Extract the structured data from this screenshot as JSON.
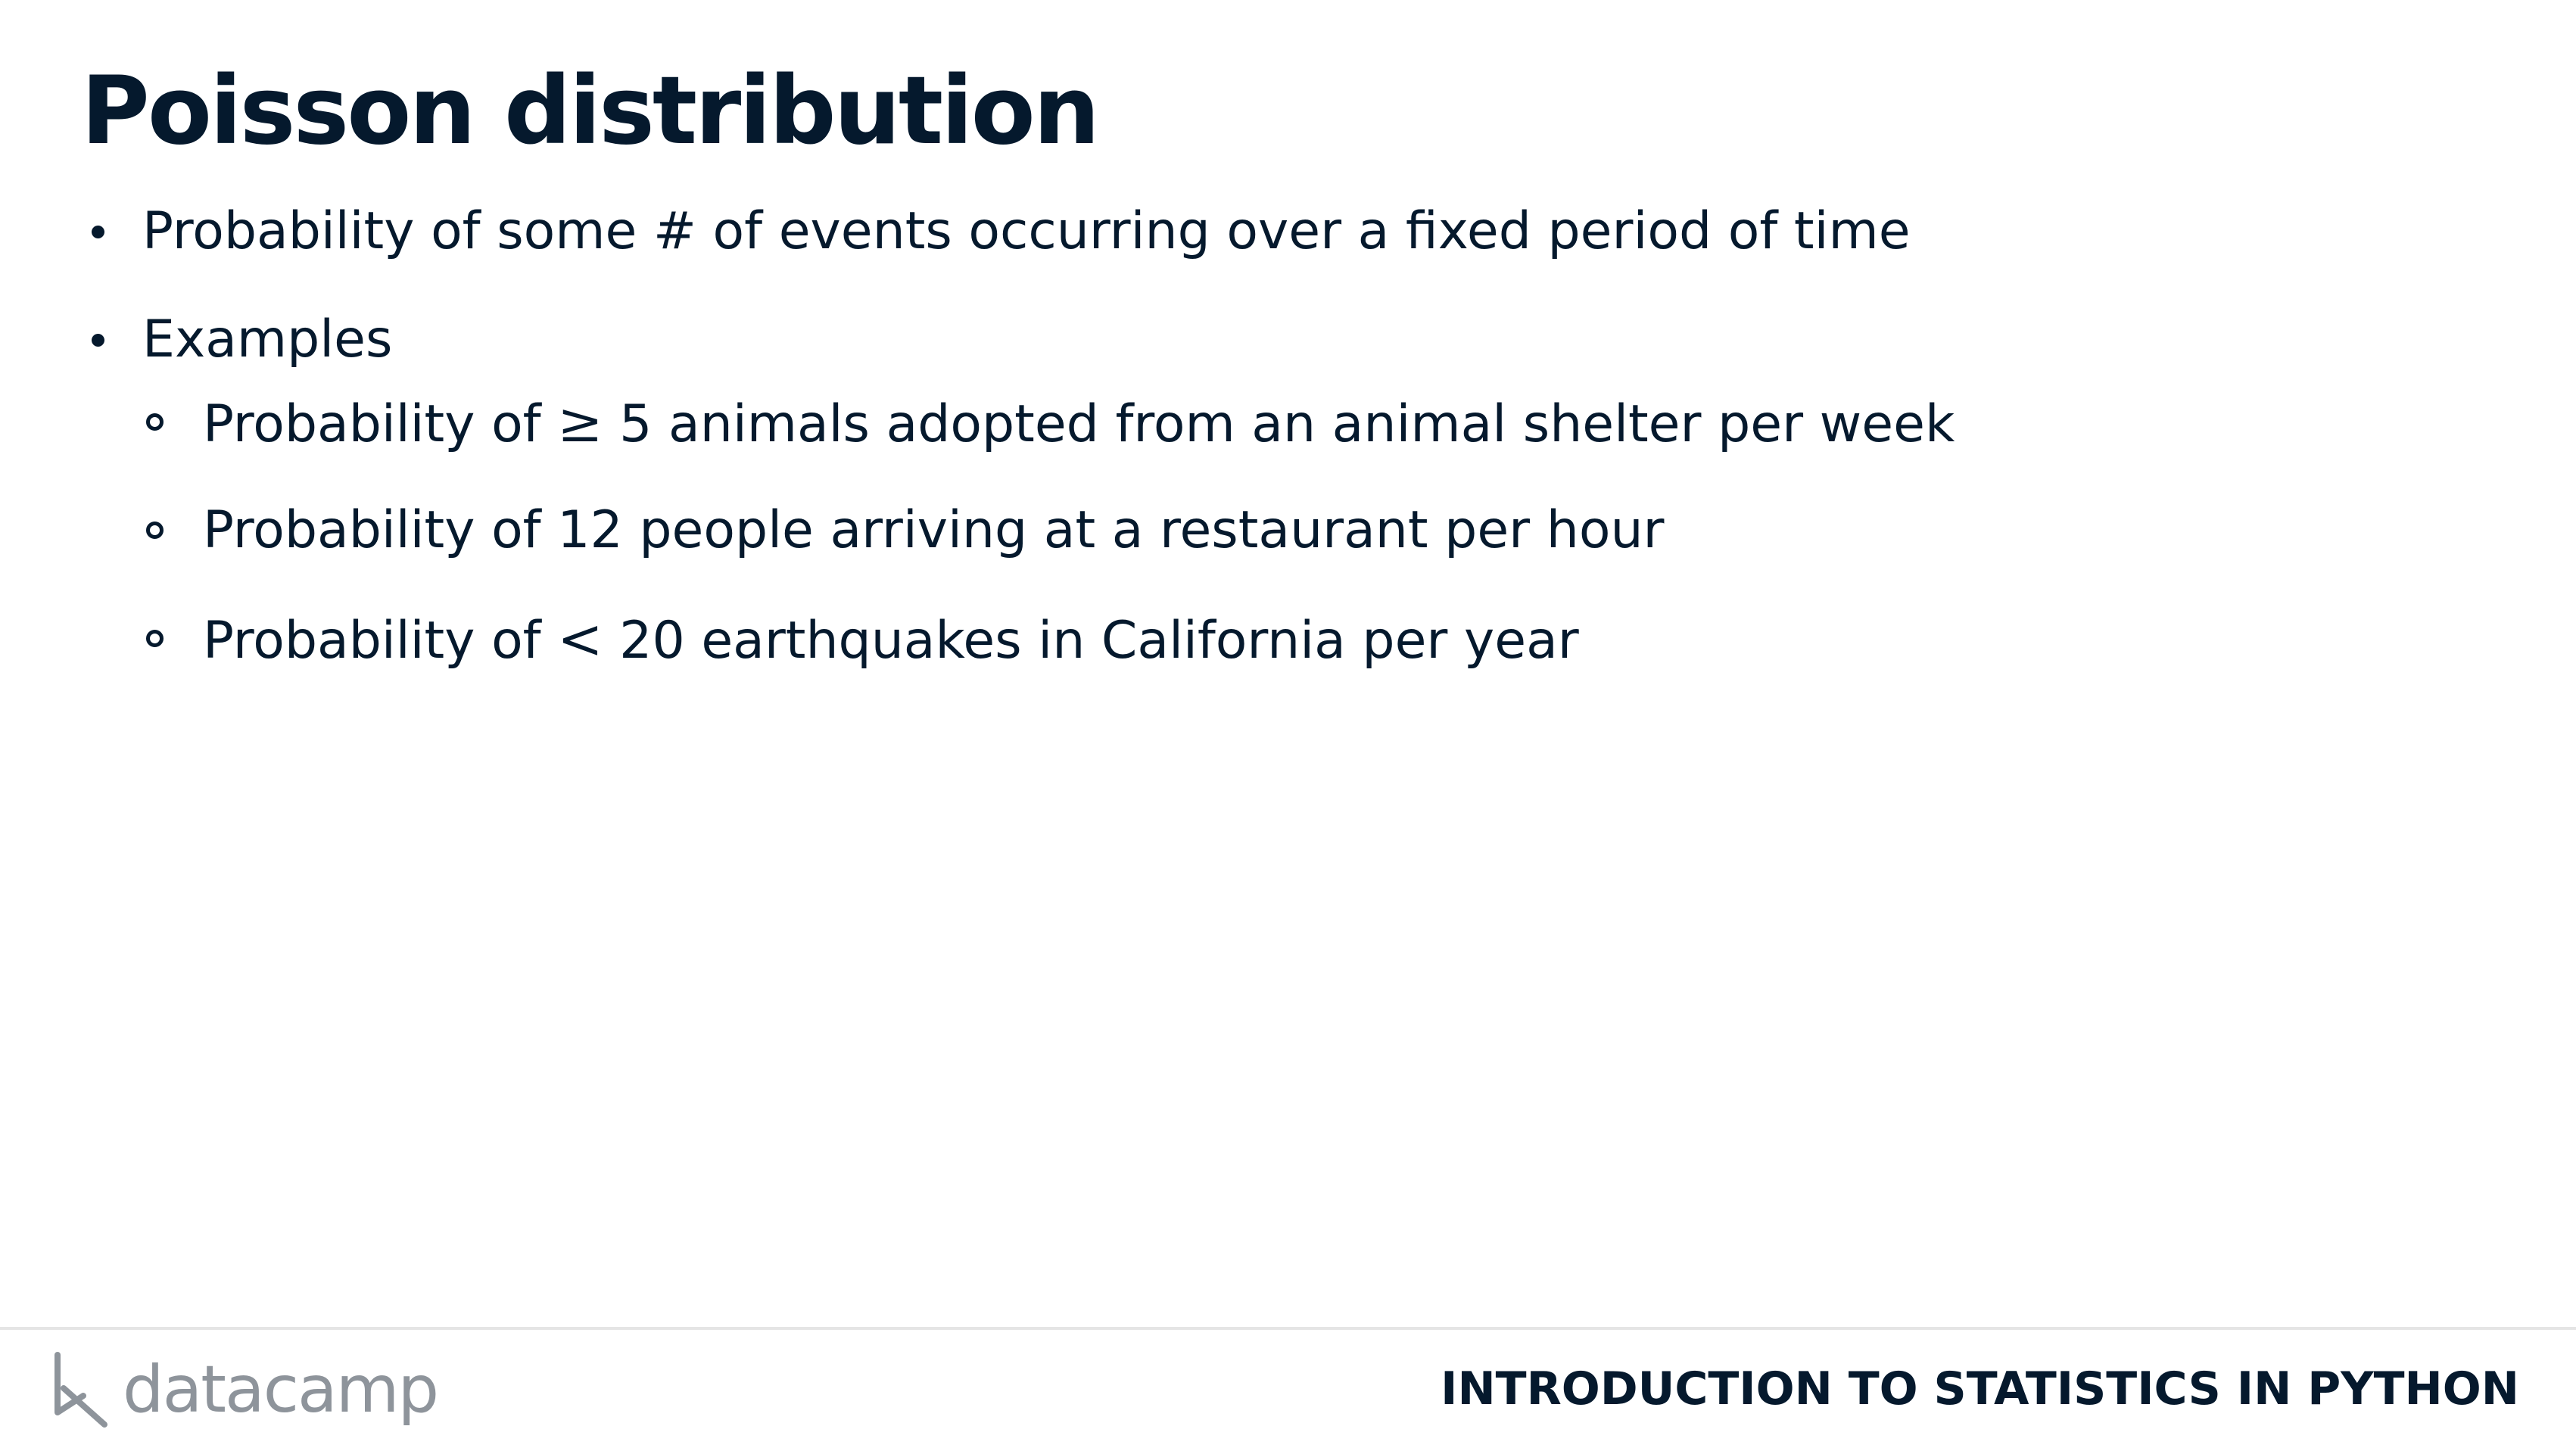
{
  "slide": {
    "title": "Poisson distribution",
    "bullets": [
      {
        "level": 1,
        "parts": [
          "Probability of some # of events occurring over a fixed period of time"
        ]
      },
      {
        "level": 1,
        "parts": [
          "Examples"
        ]
      },
      {
        "level": 2,
        "parts": [
          "Probability of ",
          "≥",
          " 5 animals adopted from an animal shelter per week"
        ]
      },
      {
        "level": 2,
        "parts": [
          "Probability of 12 people arriving at a restaurant per hour"
        ]
      },
      {
        "level": 2,
        "parts": [
          "Probability of ",
          "<",
          " 20 earthquakes in California per year"
        ]
      }
    ]
  },
  "footer": {
    "logo_text": "datacamp",
    "logo_icon": "datacamp-logo-icon",
    "course_title": "INTRODUCTION TO STATISTICS IN PYTHON"
  },
  "colors": {
    "text": "#05192d",
    "logo_gray": "#8e949b",
    "divider": "#e5e5e5",
    "background": "#ffffff"
  }
}
